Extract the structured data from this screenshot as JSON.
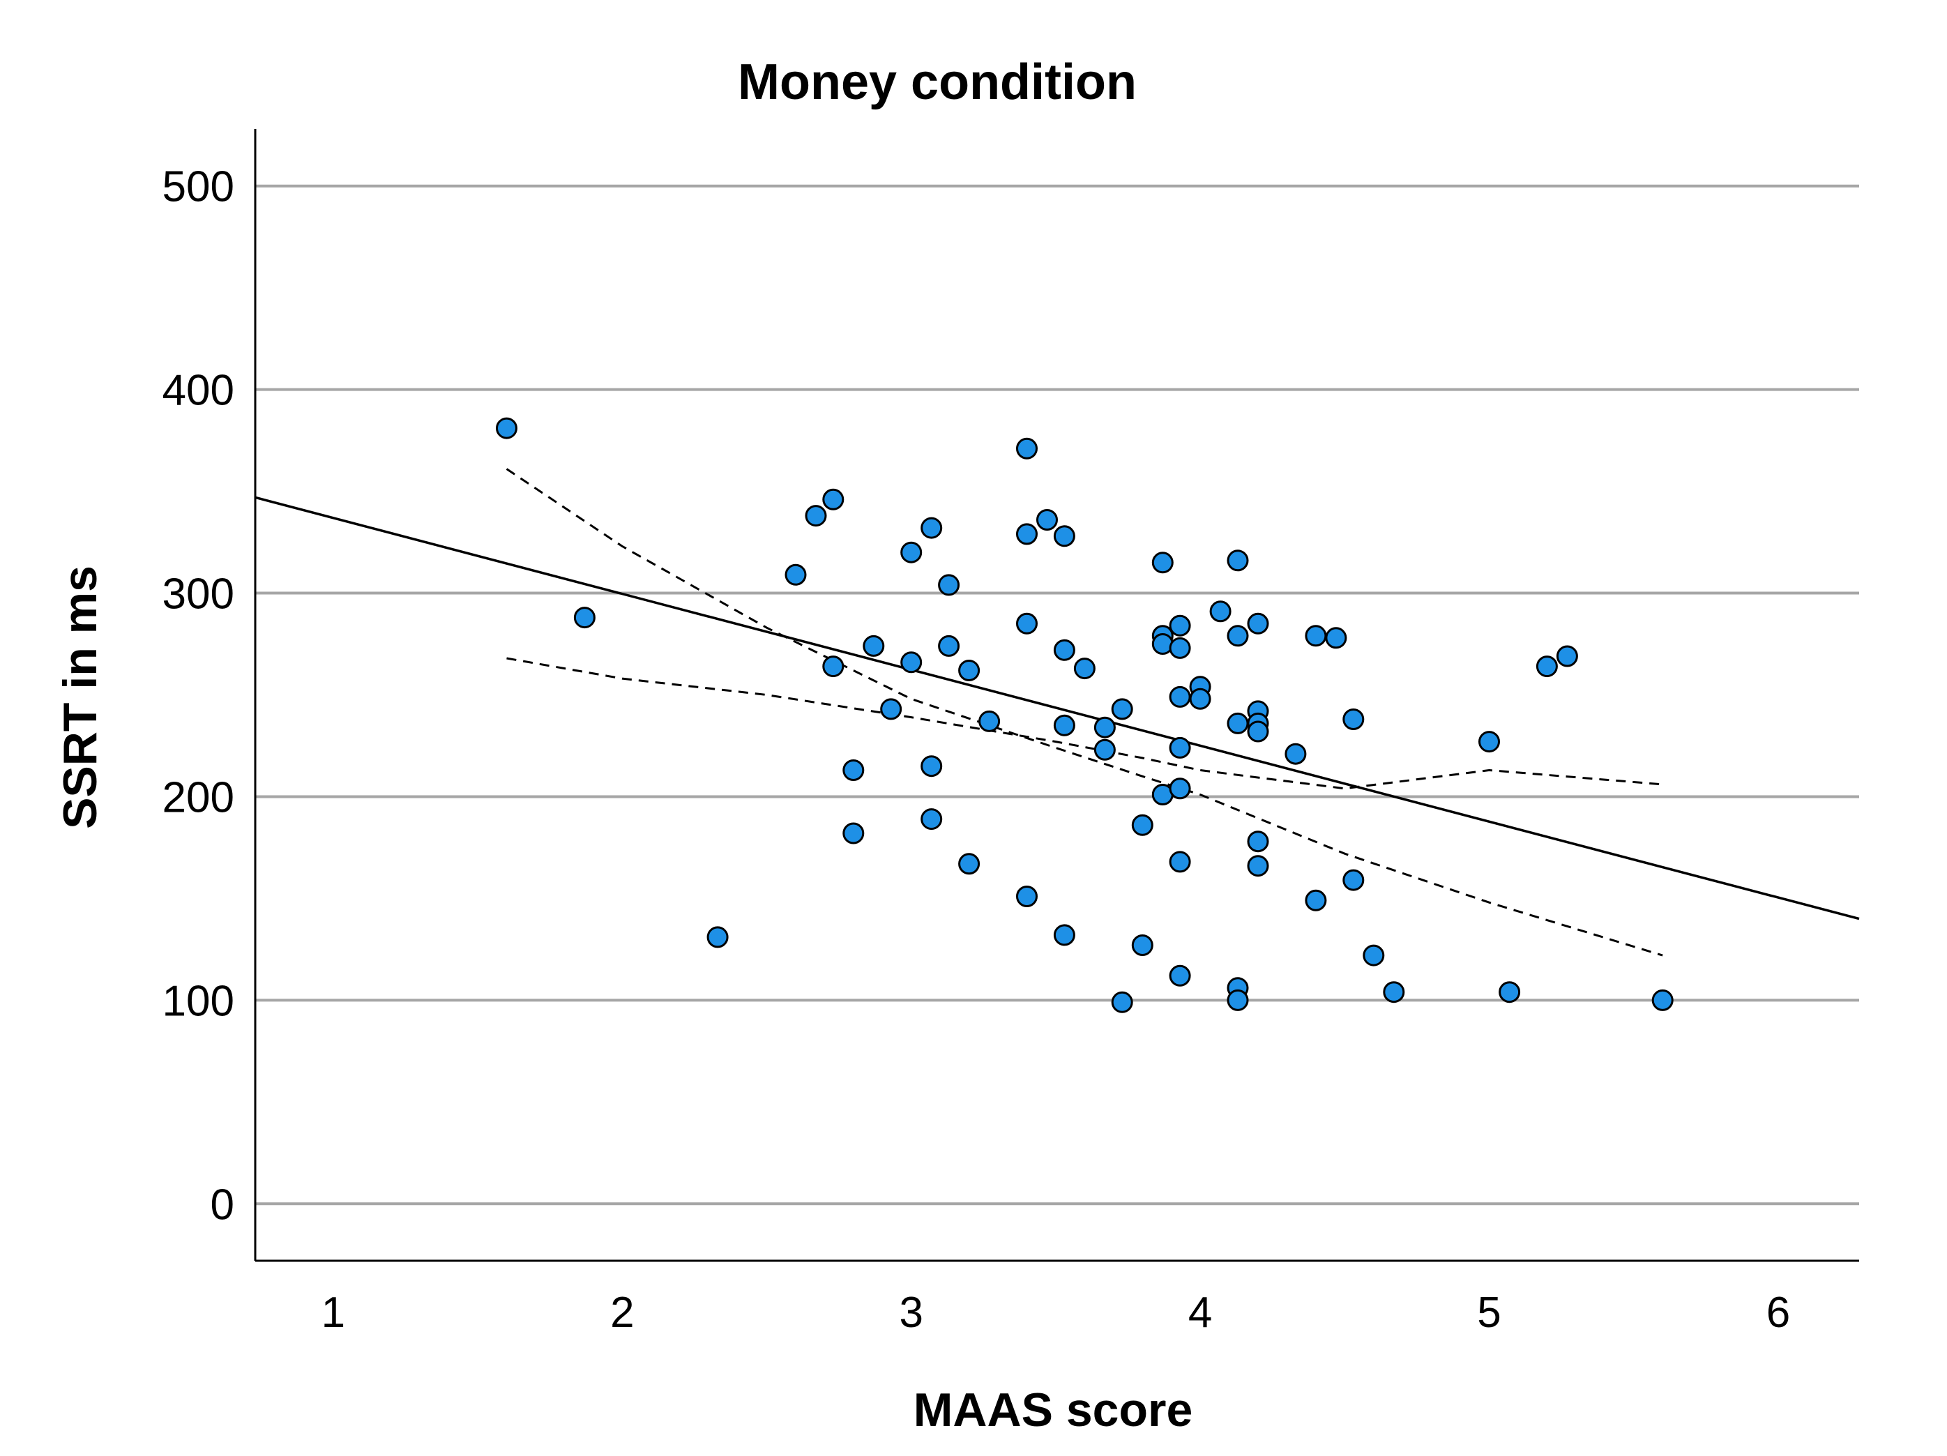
{
  "chart_data": {
    "type": "scatter",
    "title": "Money condition",
    "xlabel": "MAAS score",
    "ylabel": "SSRT in ms",
    "xlim": [
      0.73,
      6.28
    ],
    "ylim": [
      -28,
      528
    ],
    "x_ticks": [
      1,
      2,
      3,
      4,
      5,
      6
    ],
    "y_ticks": [
      0,
      100,
      200,
      300,
      400,
      500
    ],
    "grid": "horizontal",
    "colors": {
      "points": "#1e90e6",
      "point_edge": "#000000",
      "gridline": "#a6a6a6",
      "fit_line": "#000000"
    },
    "fit_line": {
      "x": [
        0.73,
        6.28
      ],
      "y": [
        347,
        140
      ]
    },
    "ci_upper": {
      "x": [
        1.6,
        2.0,
        2.5,
        3.0,
        3.5,
        3.8,
        4.0,
        4.5,
        5.0,
        5.6
      ],
      "y": [
        361,
        323,
        283,
        248,
        224,
        210,
        201,
        172,
        148,
        122
      ]
    },
    "ci_lower": {
      "x": [
        1.6,
        2.0,
        2.5,
        3.0,
        3.5,
        3.8,
        4.0,
        4.5,
        5.0,
        5.6
      ],
      "y": [
        268,
        258,
        250,
        239,
        227,
        219,
        213,
        204,
        213,
        206
      ]
    },
    "points": {
      "x": [
        1.6,
        1.87,
        2.33,
        2.6,
        2.67,
        2.73,
        2.73,
        2.8,
        2.8,
        2.87,
        2.93,
        3.0,
        3.0,
        3.07,
        3.07,
        3.07,
        3.13,
        3.13,
        3.2,
        3.2,
        3.27,
        3.4,
        3.4,
        3.4,
        3.4,
        3.47,
        3.53,
        3.53,
        3.53,
        3.53,
        3.6,
        3.67,
        3.67,
        3.73,
        3.73,
        3.8,
        3.8,
        3.87,
        3.87,
        3.87,
        3.87,
        3.93,
        3.93,
        3.93,
        3.93,
        3.93,
        3.93,
        3.93,
        4.0,
        4.0,
        4.07,
        4.13,
        4.13,
        4.13,
        4.13,
        4.13,
        4.2,
        4.2,
        4.2,
        4.2,
        4.2,
        4.2,
        4.33,
        4.4,
        4.4,
        4.47,
        4.53,
        4.53,
        4.6,
        4.67,
        5.0,
        5.07,
        5.2,
        5.27,
        5.6
      ],
      "y": [
        381,
        288,
        131,
        309,
        338,
        346,
        264,
        213,
        182,
        274,
        243,
        320,
        266,
        332,
        215,
        189,
        304,
        274,
        262,
        167,
        237,
        371,
        329,
        285,
        151,
        336,
        328,
        272,
        235,
        132,
        263,
        234,
        223,
        243,
        99,
        186,
        127,
        315,
        279,
        275,
        201,
        284,
        273,
        249,
        224,
        204,
        168,
        112,
        254,
        248,
        291,
        316,
        279,
        236,
        106,
        100,
        285,
        242,
        236,
        232,
        178,
        166,
        221,
        279,
        149,
        278,
        238,
        159,
        122,
        104,
        227,
        104,
        264,
        269,
        100
      ]
    }
  }
}
